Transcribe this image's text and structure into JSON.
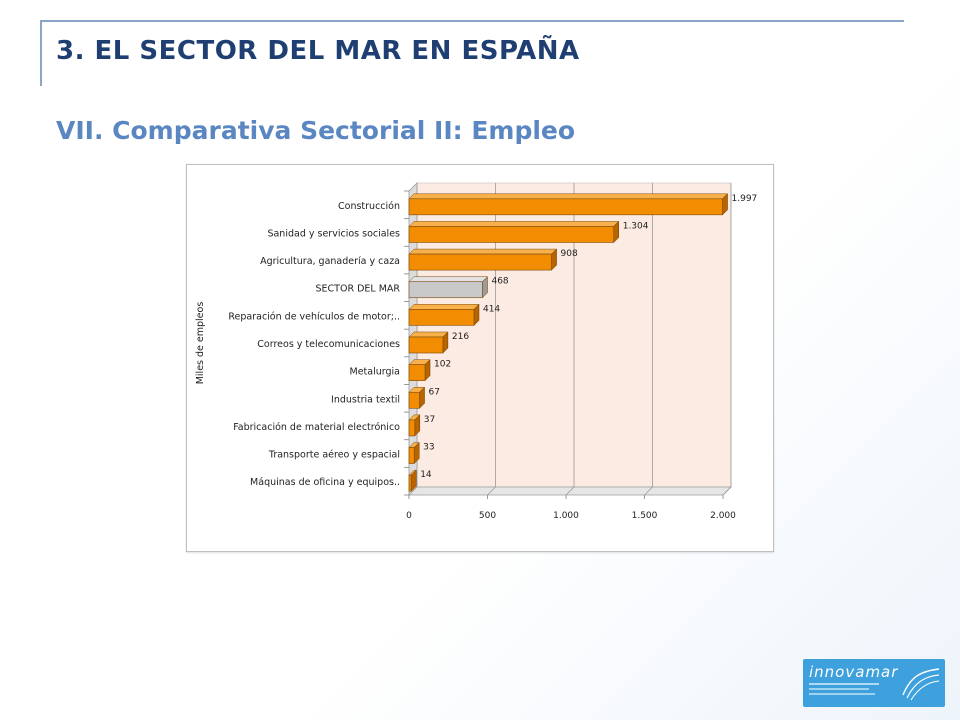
{
  "header": {
    "title": "3. EL SECTOR DEL MAR EN ESPAÑA",
    "subtitle": "VII. Comparativa Sectorial II: Empleo"
  },
  "logo": {
    "text": "INNOVAMAR"
  },
  "colors": {
    "bar": "#f28c00",
    "highlight_bar": "#c8c8c8",
    "title": "#1f3f73",
    "subtitle": "#5a86c2",
    "plot_bg": "#fcebe2"
  },
  "chart_data": {
    "type": "bar",
    "orientation": "horizontal",
    "ylabel": "Miles de empleos",
    "categories": [
      "Construcción",
      "Sanidad y servicios sociales",
      "Agricultura, ganadería y caza",
      "SECTOR DEL MAR",
      "Reparación de vehículos de motor;..",
      "Correos y telecomunicaciones",
      "Metalurgia",
      "Industria textil",
      "Fabricación de material electrónico",
      "Transporte aéreo y espacial",
      "Máquinas de oficina y equipos.."
    ],
    "values": [
      1997,
      1304,
      908,
      468,
      414,
      216,
      102,
      67,
      37,
      33,
      14
    ],
    "value_labels": [
      "1.997",
      "1.304",
      "908",
      "468",
      "414",
      "216",
      "102",
      "67",
      "37",
      "33",
      "14"
    ],
    "highlight": "SECTOR DEL MAR",
    "xlim": [
      0,
      2000
    ],
    "xticks": [
      0,
      500,
      1000,
      1500,
      2000
    ],
    "xtick_labels": [
      "0",
      "500",
      "1.000",
      "1.500",
      "2.000"
    ],
    "grid": true
  }
}
